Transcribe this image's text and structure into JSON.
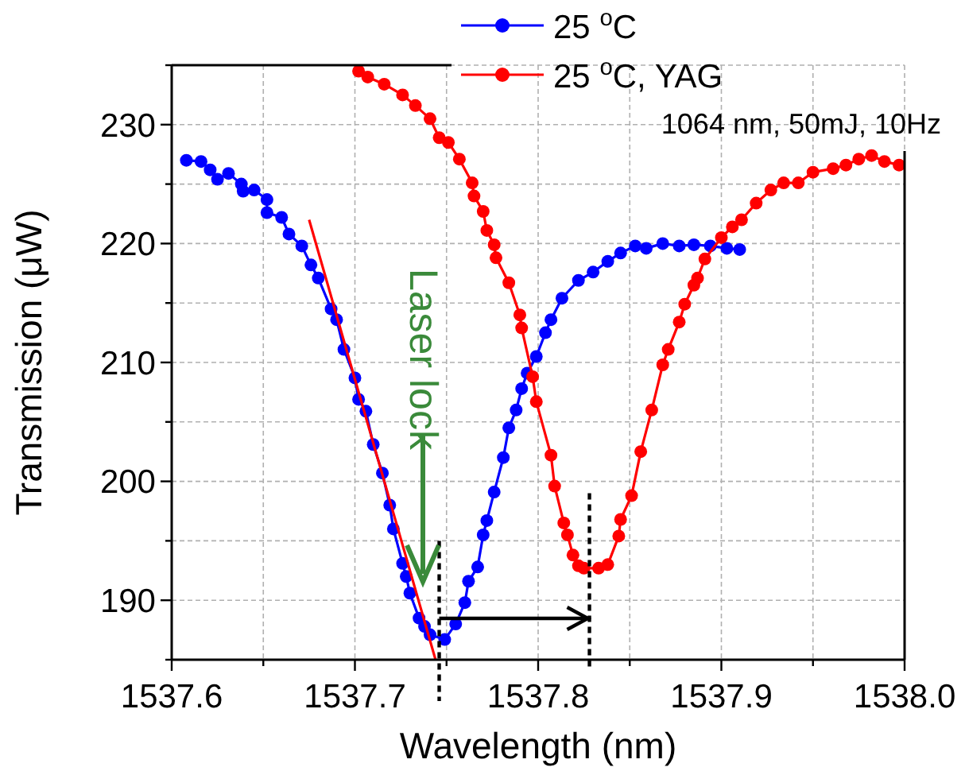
{
  "chart_data": {
    "type": "line",
    "xlabel": "Wavelength (nm)",
    "ylabel": "Transmission (μW)",
    "xlim": [
      1537.6,
      1538.0
    ],
    "ylim": [
      185,
      235
    ],
    "xticks": [
      1537.6,
      {
        "value": 1537.65,
        "label": null
      },
      {
        "value": 1537.7,
        "label": "1537.7"
      },
      {
        "value": 1537.75,
        "label": null
      },
      1537.8,
      {
        "value": 1537.85,
        "label": null
      },
      1537.9,
      {
        "value": 1537.95,
        "label": null
      },
      {
        "value": 1538.0,
        "label": "1538.0"
      }
    ],
    "yticks": [
      {
        "value": 185,
        "label": null
      },
      190,
      {
        "value": 195,
        "label": null
      },
      200,
      {
        "value": 205,
        "label": null
      },
      210,
      {
        "value": 215,
        "label": null
      },
      220,
      {
        "value": 225,
        "label": null
      },
      230,
      {
        "value": 235,
        "label": null
      }
    ],
    "grid": true,
    "legend": "top",
    "marker": "circle",
    "series": [
      {
        "name": "25 $^{o}$C",
        "color": "#0000ff",
        "x": [
          1537.608,
          1537.616,
          1537.621,
          1537.625,
          1537.631,
          1537.638,
          1537.639,
          1537.645,
          1537.652,
          1537.652,
          1537.66,
          1537.664,
          1537.671,
          1537.676,
          1537.68,
          1537.687,
          1537.69,
          1537.694,
          1537.7,
          1537.702,
          1537.706,
          1537.71,
          1537.715,
          1537.719,
          1537.721,
          1537.726,
          1537.728,
          1537.73,
          1537.735,
          1537.738,
          1537.741,
          1537.749,
          1537.755,
          1537.76,
          1537.762,
          1537.767,
          1537.77,
          1537.772,
          1537.776,
          1537.781,
          1537.784,
          1537.788,
          1537.791,
          1537.794,
          1537.799,
          1537.804,
          1537.807,
          1537.813,
          1537.822,
          1537.83,
          1537.838,
          1537.845,
          1537.853,
          1537.859,
          1537.868,
          1537.877,
          1537.885,
          1537.894,
          1537.903,
          1537.91
        ],
        "values": [
          227.0,
          226.9,
          226.2,
          225.4,
          225.9,
          225.0,
          224.4,
          224.5,
          223.7,
          222.6,
          222.2,
          220.8,
          219.8,
          218.2,
          217.1,
          214.5,
          213.6,
          211.1,
          208.7,
          206.9,
          205.9,
          203.1,
          200.7,
          198.0,
          196.0,
          193.1,
          192.0,
          190.6,
          188.5,
          187.8,
          187.1,
          186.7,
          188.0,
          189.8,
          191.6,
          192.8,
          195.5,
          196.7,
          199.1,
          202.0,
          204.5,
          206.0,
          207.8,
          209.1,
          210.5,
          212.5,
          213.6,
          215.4,
          216.9,
          217.6,
          218.5,
          219.2,
          219.8,
          219.6,
          220.0,
          219.8,
          219.9,
          219.8,
          219.6,
          219.5
        ]
      },
      {
        "name": "25 $^{o}$C, YAG",
        "color": "#ff0000",
        "x": [
          1537.702,
          1537.707,
          1537.716,
          1537.726,
          1537.733,
          1537.741,
          1537.746,
          1537.751,
          1537.757,
          1537.764,
          1537.765,
          1537.77,
          1537.772,
          1537.776,
          1537.777,
          1537.783,
          1537.784,
          1537.79,
          1537.791,
          1537.797,
          1537.799,
          1537.807,
          1537.809,
          1537.814,
          1537.816,
          1537.819,
          1537.822,
          1537.825,
          1537.829,
          1537.833,
          1537.838,
          1537.844,
          1537.845,
          1537.851,
          1537.856,
          1537.862,
          1537.868,
          1537.871,
          1537.877,
          1537.88,
          1537.885,
          1537.887,
          1537.891,
          1537.9,
          1537.906,
          1537.911,
          1537.919,
          1537.927,
          1537.934,
          1537.942,
          1537.95,
          1537.961,
          1537.968,
          1537.975,
          1537.982,
          1537.989,
          1537.997
        ],
        "values": [
          234.5,
          234.0,
          233.4,
          232.5,
          231.6,
          230.5,
          228.9,
          228.5,
          227.1,
          225.1,
          224.0,
          222.7,
          221.1,
          219.9,
          218.8,
          null,
          216.7,
          214.0,
          212.9,
          208.8,
          206.7,
          202.2,
          199.6,
          196.5,
          195.5,
          193.8,
          192.9,
          192.7,
          null,
          192.7,
          193.0,
          195.4,
          196.8,
          198.8,
          202.5,
          206.0,
          209.8,
          211.1,
          213.4,
          214.9,
          216.5,
          217.1,
          218.7,
          220.5,
          221.4,
          222.0,
          223.4,
          224.5,
          225.1,
          225.1,
          226.0,
          226.3,
          226.6,
          227.1,
          227.4,
          226.9,
          226.6
        ]
      },
      {
        "type": "line",
        "color": "#ff0000",
        "marker": "none",
        "x": [
          1537.675,
          1537.744
        ],
        "values": [
          222.0,
          185.0
        ]
      }
    ],
    "ref_lines": [
      {
        "axis": "x",
        "value": 1537.746,
        "color": "#000000",
        "line_style": "dashed"
      },
      {
        "axis": "x",
        "value": 1537.828,
        "color": "#000000",
        "line_style": "dashed"
      }
    ],
    "annotations": [
      "1064 nm, 50mJ, 10Hz",
      "Laser lock"
    ]
  }
}
